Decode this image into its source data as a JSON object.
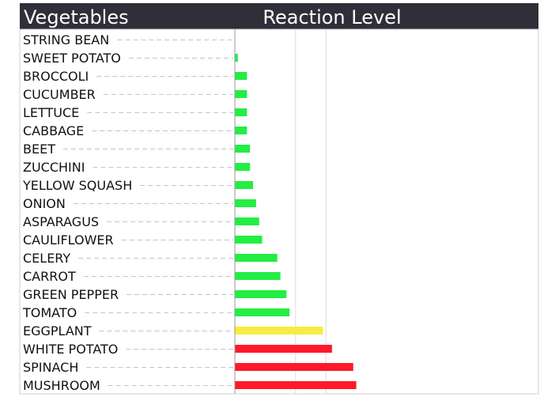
{
  "header": {
    "left_title": "Vegetables",
    "right_title": "Reaction Level",
    "background": "#2f2f3a"
  },
  "chart_data": {
    "type": "bar",
    "orientation": "horizontal",
    "title": "",
    "xlabel": "Reaction Level",
    "ylabel": "Vegetables",
    "xlim": [
      0,
      100
    ],
    "gridlines": [
      20,
      30
    ],
    "grid": true,
    "categories": [
      "STRING BEAN",
      "SWEET POTATO",
      "BROCCOLI",
      "CUCUMBER",
      "LETTUCE",
      "CABBAGE",
      "BEET",
      "ZUCCHINI",
      "YELLOW SQUASH",
      "ONION",
      "ASPARAGUS",
      "CAULIFLOWER",
      "CELERY",
      "CARROT",
      "GREEN PEPPER",
      "TOMATO",
      "EGGPLANT",
      "WHITE POTATO",
      "SPINACH",
      "MUSHROOM"
    ],
    "values": [
      0,
      1,
      4,
      4,
      4,
      4,
      5,
      5,
      6,
      7,
      8,
      9,
      14,
      15,
      17,
      18,
      29,
      32,
      39,
      40
    ],
    "bar_colors": [
      "#22ee44",
      "#22ee44",
      "#22ee44",
      "#22ee44",
      "#22ee44",
      "#22ee44",
      "#22ee44",
      "#22ee44",
      "#22ee44",
      "#22ee44",
      "#22ee44",
      "#22ee44",
      "#22ee44",
      "#22ee44",
      "#22ee44",
      "#22ee44",
      "#f5ee40",
      "#ff1a2a",
      "#ff1a2a",
      "#ff1a2a"
    ]
  }
}
